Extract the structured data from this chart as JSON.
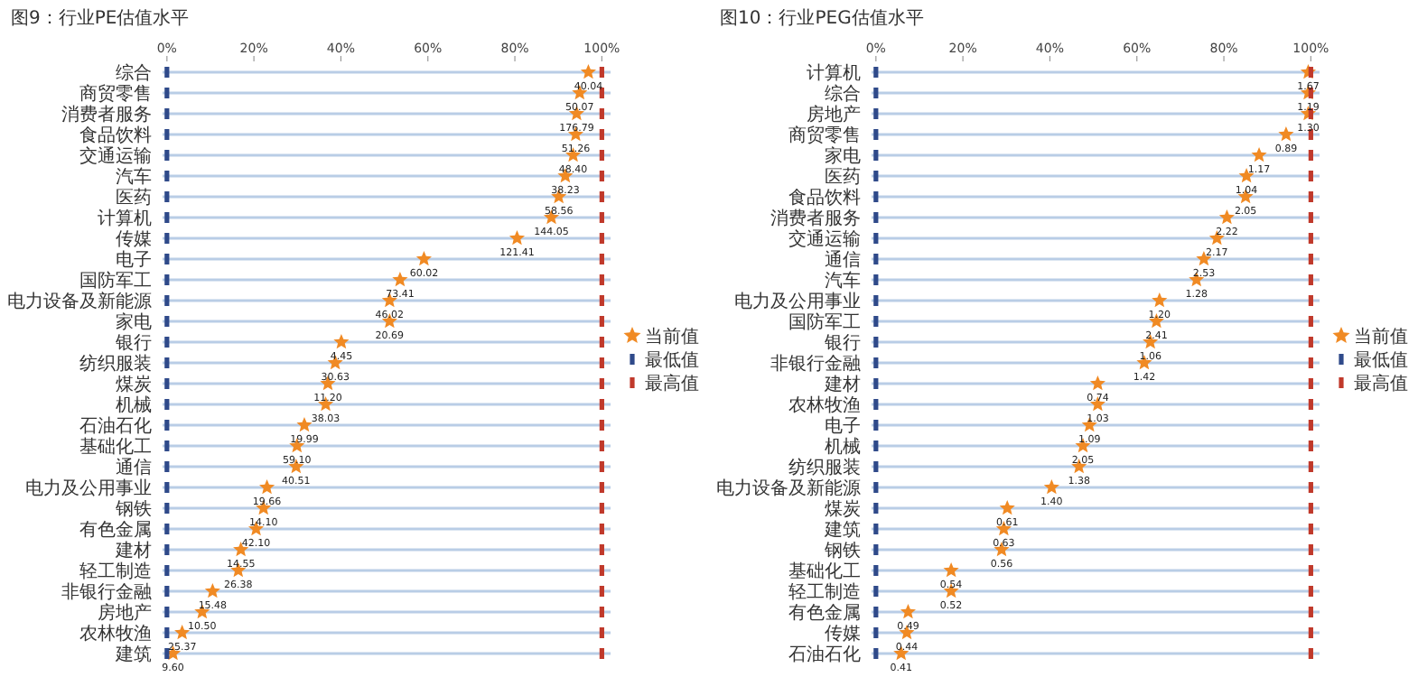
{
  "chart_data": [
    {
      "type": "scatter",
      "orientation": "horizontal",
      "title": "图9：行业PE估值水平",
      "grid": "y",
      "legend": "right",
      "xlim": [
        -1,
        102
      ],
      "xticks": [
        {
          "value": 0,
          "label": "0%"
        },
        {
          "value": 20,
          "label": "20%"
        },
        {
          "value": 40,
          "label": "40%"
        },
        {
          "value": 60,
          "label": "60%"
        },
        {
          "value": 80,
          "label": "80%"
        },
        {
          "value": 100,
          "label": "100%"
        }
      ],
      "categories": [
        "综合",
        "商贸零售",
        "消费者服务",
        "食品饮料",
        "交通运输",
        "汽车",
        "医药",
        "计算机",
        "传媒",
        "电子",
        "国防军工",
        "电力设备及新能源",
        "家电",
        "银行",
        "纺织服装",
        "煤炭",
        "机械",
        "石油石化",
        "基础化工",
        "通信",
        "电力及公用事业",
        "钢铁",
        "有色金属",
        "建材",
        "轻工制造",
        "非银行金融",
        "房地产",
        "农林牧渔",
        "建筑"
      ],
      "series": [
        {
          "name": "当前值",
          "color": "#f08a24",
          "marker": "star",
          "values": [
            96.9,
            94.9,
            94.2,
            94.0,
            93.4,
            91.6,
            90.1,
            88.4,
            80.5,
            59.1,
            53.6,
            51.2,
            51.2,
            40.1,
            38.7,
            37.0,
            36.5,
            31.6,
            29.9,
            29.7,
            23.0,
            22.2,
            20.5,
            17.0,
            16.4,
            10.5,
            8.1,
            3.5,
            1.4
          ]
        },
        {
          "name": "最低值",
          "color": "#2f4a8a",
          "marker": "square",
          "values": [
            0,
            0,
            0,
            0,
            0,
            0,
            0,
            0,
            0,
            0,
            0,
            0,
            0,
            0,
            0,
            0,
            0,
            0,
            0,
            0,
            0,
            0,
            0,
            0,
            0,
            0,
            0,
            0,
            0
          ]
        },
        {
          "name": "最高值",
          "color": "#c0392b",
          "marker": "square",
          "values": [
            100,
            100,
            100,
            100,
            100,
            100,
            100,
            100,
            100,
            100,
            100,
            100,
            100,
            100,
            100,
            100,
            100,
            100,
            100,
            100,
            100,
            100,
            100,
            100,
            100,
            100,
            100,
            100,
            100
          ]
        }
      ],
      "annotations": [
        {
          "text": "40.04",
          "x": 96.9,
          "y": "综合"
        },
        {
          "text": "50.07",
          "x": 94.9,
          "y": "商贸零售"
        },
        {
          "text": "176.79",
          "x": 94.2,
          "y": "消费者服务"
        },
        {
          "text": "51.26",
          "x": 94.0,
          "y": "食品饮料"
        },
        {
          "text": "48.40",
          "x": 93.4,
          "y": "交通运输"
        },
        {
          "text": "38.23",
          "x": 91.6,
          "y": "汽车"
        },
        {
          "text": "58.56",
          "x": 90.1,
          "y": "医药"
        },
        {
          "text": "144.05",
          "x": 88.4,
          "y": "计算机"
        },
        {
          "text": "121.41",
          "x": 80.5,
          "y": "传媒"
        },
        {
          "text": "60.02",
          "x": 59.1,
          "y": "电子"
        },
        {
          "text": "73.41",
          "x": 53.6,
          "y": "国防军工"
        },
        {
          "text": "46.02",
          "x": 51.2,
          "y": "电力设备及新能源"
        },
        {
          "text": "20.69",
          "x": 51.2,
          "y": "家电"
        },
        {
          "text": "4.45",
          "x": 40.1,
          "y": "银行"
        },
        {
          "text": "30.63",
          "x": 38.7,
          "y": "纺织服装"
        },
        {
          "text": "11.20",
          "x": 37.0,
          "y": "煤炭"
        },
        {
          "text": "38.03",
          "x": 36.5,
          "y": "机械"
        },
        {
          "text": "19.99",
          "x": 31.6,
          "y": "石油石化"
        },
        {
          "text": "59.10",
          "x": 29.9,
          "y": "基础化工"
        },
        {
          "text": "40.51",
          "x": 29.7,
          "y": "通信"
        },
        {
          "text": "19.66",
          "x": 23.0,
          "y": "电力及公用事业"
        },
        {
          "text": "14.10",
          "x": 22.2,
          "y": "钢铁"
        },
        {
          "text": "42.10",
          "x": 20.5,
          "y": "有色金属"
        },
        {
          "text": "14.55",
          "x": 17.0,
          "y": "建材"
        },
        {
          "text": "26.38",
          "x": 16.4,
          "y": "轻工制造"
        },
        {
          "text": "15.48",
          "x": 10.5,
          "y": "非银行金融"
        },
        {
          "text": "10.50",
          "x": 8.1,
          "y": "房地产"
        },
        {
          "text": "25.37",
          "x": 3.5,
          "y": "农林牧渔"
        },
        {
          "text": "9.60",
          "x": 1.4,
          "y": "建筑"
        }
      ]
    },
    {
      "type": "scatter",
      "orientation": "horizontal",
      "title": "图10：行业PEG估值水平",
      "grid": "y",
      "legend": "right",
      "xlim": [
        -1,
        102
      ],
      "xticks": [
        {
          "value": 0,
          "label": "0%"
        },
        {
          "value": 20,
          "label": "20%"
        },
        {
          "value": 40,
          "label": "40%"
        },
        {
          "value": 60,
          "label": "60%"
        },
        {
          "value": 80,
          "label": "80%"
        },
        {
          "value": 100,
          "label": "100%"
        }
      ],
      "categories": [
        "计算机",
        "综合",
        "房地产",
        "商贸零售",
        "家电",
        "医药",
        "食品饮料",
        "消费者服务",
        "交通运输",
        "通信",
        "汽车",
        "电力及公用事业",
        "国防军工",
        "银行",
        "非银行金融",
        "建材",
        "农林牧渔",
        "电子",
        "机械",
        "纺织服装",
        "电力设备及新能源",
        "煤炭",
        "建筑",
        "钢铁",
        "基础化工",
        "轻工制造",
        "有色金属",
        "传媒",
        "石油石化"
      ],
      "series": [
        {
          "name": "当前值",
          "color": "#f08a24",
          "marker": "star",
          "values": [
            99.4,
            99.4,
            99.4,
            94.3,
            88.1,
            85.2,
            85.0,
            80.7,
            78.4,
            75.4,
            73.7,
            65.2,
            64.5,
            63.1,
            61.7,
            51.0,
            51.0,
            49.1,
            47.6,
            46.7,
            40.4,
            30.2,
            29.4,
            28.9,
            17.3,
            17.3,
            7.4,
            7.1,
            5.8
          ]
        },
        {
          "name": "最低值",
          "color": "#2f4a8a",
          "marker": "square",
          "values": [
            0,
            0,
            0,
            0,
            0,
            0,
            0,
            0,
            0,
            0,
            0,
            0,
            0,
            0,
            0,
            0,
            0,
            0,
            0,
            0,
            0,
            0,
            0,
            0,
            0,
            0,
            0,
            0,
            0
          ]
        },
        {
          "name": "最高值",
          "color": "#c0392b",
          "marker": "square",
          "values": [
            100,
            100,
            100,
            100,
            100,
            100,
            100,
            100,
            100,
            100,
            100,
            100,
            100,
            100,
            100,
            100,
            100,
            100,
            100,
            100,
            100,
            100,
            100,
            100,
            100,
            100,
            100,
            100,
            100
          ]
        }
      ],
      "annotations": [
        {
          "text": "1.67",
          "x": 99.4,
          "y": "计算机"
        },
        {
          "text": "1.19",
          "x": 99.4,
          "y": "综合"
        },
        {
          "text": "1.30",
          "x": 99.4,
          "y": "房地产"
        },
        {
          "text": "0.89",
          "x": 94.3,
          "y": "商贸零售"
        },
        {
          "text": "1.17",
          "x": 88.1,
          "y": "家电"
        },
        {
          "text": "1.04",
          "x": 85.2,
          "y": "医药"
        },
        {
          "text": "2.05",
          "x": 85.0,
          "y": "食品饮料"
        },
        {
          "text": "2.22",
          "x": 80.7,
          "y": "消费者服务"
        },
        {
          "text": "2.17",
          "x": 78.4,
          "y": "交通运输"
        },
        {
          "text": "2.53",
          "x": 75.4,
          "y": "通信"
        },
        {
          "text": "1.28",
          "x": 73.7,
          "y": "汽车"
        },
        {
          "text": "1.20",
          "x": 65.2,
          "y": "电力及公用事业"
        },
        {
          "text": "2.41",
          "x": 64.5,
          "y": "国防军工"
        },
        {
          "text": "1.06",
          "x": 63.1,
          "y": "银行"
        },
        {
          "text": "1.42",
          "x": 61.7,
          "y": "非银行金融"
        },
        {
          "text": "0.74",
          "x": 51.0,
          "y": "建材"
        },
        {
          "text": "1.03",
          "x": 51.0,
          "y": "农林牧渔"
        },
        {
          "text": "1.09",
          "x": 49.1,
          "y": "电子"
        },
        {
          "text": "2.05",
          "x": 47.6,
          "y": "机械"
        },
        {
          "text": "1.38",
          "x": 46.7,
          "y": "纺织服装"
        },
        {
          "text": "1.40",
          "x": 40.4,
          "y": "电力设备及新能源"
        },
        {
          "text": "0.61",
          "x": 30.2,
          "y": "煤炭"
        },
        {
          "text": "0.63",
          "x": 29.4,
          "y": "建筑"
        },
        {
          "text": "0.56",
          "x": 28.9,
          "y": "钢铁"
        },
        {
          "text": "0.54",
          "x": 17.3,
          "y": "基础化工"
        },
        {
          "text": "0.52",
          "x": 17.3,
          "y": "轻工制造"
        },
        {
          "text": "0.49",
          "x": 7.4,
          "y": "有色金属"
        },
        {
          "text": "0.44",
          "x": 7.1,
          "y": "传媒"
        },
        {
          "text": "0.41",
          "x": 5.8,
          "y": "石油石化"
        }
      ]
    }
  ]
}
